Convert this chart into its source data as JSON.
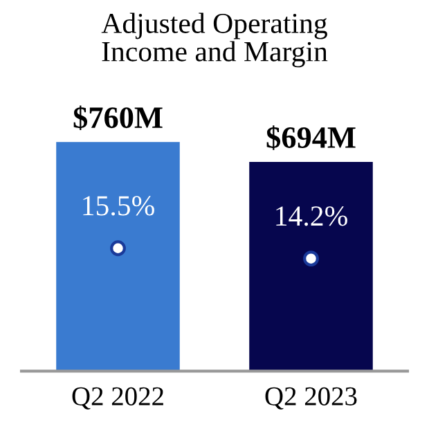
{
  "chart_data": {
    "type": "bar",
    "title": "Adjusted Operating\nIncome and Margin",
    "categories": [
      "Q2 2022",
      "Q2 2023"
    ],
    "series": [
      {
        "colors": [
          "#3a7bd0",
          "#06064e"
        ],
        "values": [
          760,
          694
        ],
        "value_labels": [
          "$760M",
          "$694M"
        ]
      },
      {
        "type": "scatter",
        "axis": "y2",
        "color": "#ffffff",
        "marker": "circle",
        "values": [
          15.5,
          14.2
        ],
        "value_labels": [
          "15.5%",
          "14.2%"
        ]
      }
    ],
    "tick_labels": "x"
  }
}
